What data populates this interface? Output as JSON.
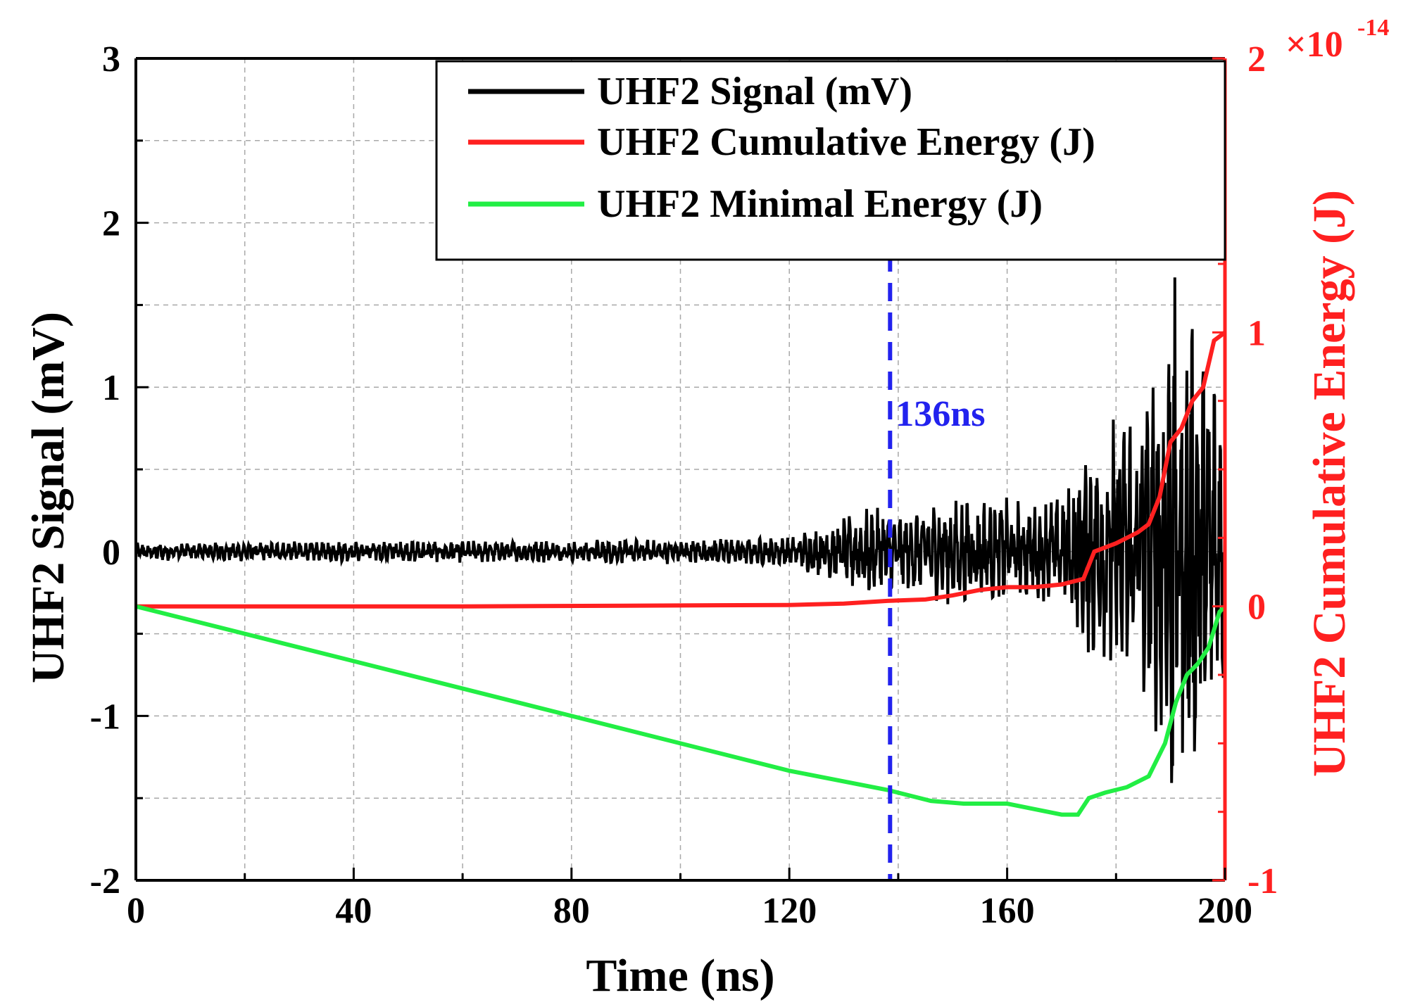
{
  "chart_data": {
    "type": "line",
    "title": "",
    "xlabel": "Time (ns)",
    "ylabel": "UHF2 Signal (mV)",
    "y2label": "UHF2 Cumulative Energy (J)",
    "xlim": [
      0,
      200
    ],
    "ylim": [
      -2,
      3
    ],
    "y2lim": [
      -1,
      2
    ],
    "y2_multiplier_label": "×10",
    "y2_multiplier_exp": "-14",
    "xticks": [
      "0",
      "40",
      "80",
      "120",
      "160",
      "200"
    ],
    "xtick_values": [
      0,
      40,
      80,
      120,
      160,
      200
    ],
    "yticks": [
      "3",
      "2",
      "1",
      "0",
      "-1",
      "-2"
    ],
    "ytick_values": [
      3,
      2,
      1,
      0,
      -1,
      -2
    ],
    "y2ticks": [
      "2",
      "1",
      "0",
      "-1"
    ],
    "y2tick_values": [
      2,
      1,
      0,
      -1
    ],
    "grid": true,
    "legend_position": "top-right",
    "colors": {
      "signal": "#000000",
      "cumulative": "#ff2020",
      "minimal": "#22ee44",
      "marker": "#2222ee",
      "right_axis": "#ff2020"
    },
    "annotation": {
      "label": "136ns",
      "x": 138.5
    },
    "series": [
      {
        "name": "UHF2 Signal (mV)",
        "axis": "left",
        "envelope": {
          "x": [
            0,
            100,
            120,
            128,
            135,
            140,
            150,
            160,
            170,
            174,
            180,
            186,
            190,
            195,
            200
          ],
          "amplitude": [
            0.05,
            0.07,
            0.08,
            0.18,
            0.25,
            0.22,
            0.3,
            0.3,
            0.3,
            0.55,
            0.8,
            0.9,
            1.6,
            1.3,
            0.9
          ]
        }
      },
      {
        "name": "UHF2 Cumulative Energy (J)",
        "axis": "right",
        "x": [
          0,
          60,
          120,
          130,
          138,
          145,
          150,
          155,
          160,
          165,
          170,
          174,
          176,
          180,
          184,
          186,
          188,
          190,
          192,
          194,
          196,
          198,
          200
        ],
        "y": [
          0,
          0,
          0.005,
          0.01,
          0.02,
          0.025,
          0.04,
          0.06,
          0.07,
          0.07,
          0.08,
          0.1,
          0.2,
          0.23,
          0.27,
          0.3,
          0.4,
          0.6,
          0.65,
          0.75,
          0.8,
          0.97,
          1.0
        ]
      },
      {
        "name": "UHF2 Minimal Energy (J)",
        "axis": "right",
        "x": [
          0,
          40,
          80,
          120,
          138,
          146,
          152,
          160,
          165,
          170,
          173,
          175,
          178,
          182,
          186,
          189,
          191,
          193,
          195,
          197,
          199,
          200
        ],
        "y": [
          0,
          -0.2,
          -0.4,
          -0.6,
          -0.67,
          -0.71,
          -0.72,
          -0.72,
          -0.74,
          -0.76,
          -0.76,
          -0.7,
          -0.68,
          -0.66,
          -0.62,
          -0.5,
          -0.35,
          -0.25,
          -0.21,
          -0.15,
          -0.02,
          0
        ]
      }
    ]
  }
}
